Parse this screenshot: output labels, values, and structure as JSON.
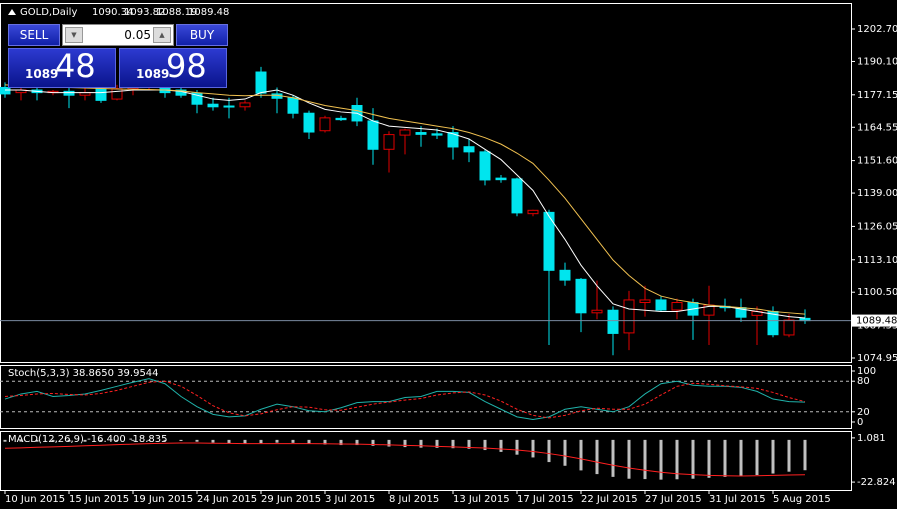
{
  "header": {
    "symbol": "GOLD,Daily"
  },
  "panel": {
    "sell": "SELL",
    "buy": "BUY",
    "lot": "0.05",
    "bid_small": "1089",
    "bid_big": "48",
    "ask_small": "1089",
    "ask_big": "98"
  },
  "chart_data": [
    {
      "type": "candlestick",
      "categories": [
        "10 Jun 2015",
        null,
        null,
        null,
        "15 Jun 2015",
        null,
        null,
        null,
        "19 Jun 2015",
        null,
        null,
        null,
        "24 Jun 2015",
        null,
        null,
        null,
        "29 Jun 2015",
        null,
        null,
        null,
        "3 Jul 2015",
        null,
        null,
        null,
        "8 Jul 2015",
        null,
        null,
        null,
        "13 Jul 2015",
        null,
        null,
        null,
        "17 Jul 2015",
        null,
        null,
        null,
        "22 Jul 2015",
        null,
        null,
        null,
        "27 Jul 2015",
        null,
        null,
        null,
        "31 Jul 2015",
        null,
        null,
        null,
        "5 Aug 2015",
        null,
        null
      ],
      "open": [
        1180,
        1178,
        1179,
        1178,
        1178.5,
        1177,
        1179.5,
        1175.5,
        1179.5,
        1180,
        1180,
        1179,
        1177.8,
        1173.5,
        1172.8,
        1172.5,
        1186,
        1177.5,
        1176,
        1170,
        1163.2,
        1168,
        1173,
        1167,
        1156,
        1161.5,
        1162.5,
        1162,
        1162.5,
        1157,
        1155,
        1144.8,
        1144.5,
        1131,
        1131.5,
        1109,
        1105.5,
        1092.5,
        1093.5,
        1084.7,
        1096.5,
        1097.5,
        1093.6,
        1096.5,
        1091.6,
        1095,
        1094.5,
        1091.5,
        1093,
        1083.9,
        1090.34
      ],
      "high": [
        1182,
        1181,
        1181,
        1179,
        1180,
        1180,
        1181,
        1181,
        1184,
        1181,
        1183,
        1180,
        1179,
        1176,
        1176,
        1175,
        1188,
        1180,
        1177,
        1171,
        1169,
        1169,
        1176,
        1172,
        1163,
        1164,
        1165,
        1164,
        1165,
        1160,
        1156,
        1146,
        1145,
        1132.5,
        1132.5,
        1112,
        1106,
        1105,
        1095,
        1101,
        1103,
        1099,
        1098,
        1098,
        1103,
        1098,
        1098,
        1095,
        1095,
        1092,
        1093.82
      ],
      "low": [
        1176,
        1175,
        1175,
        1177,
        1172,
        1175,
        1174,
        1175,
        1177,
        1179,
        1176,
        1176,
        1170,
        1171,
        1168,
        1171,
        1176,
        1170,
        1168,
        1160,
        1162.5,
        1167,
        1165,
        1150,
        1147,
        1154,
        1157,
        1160,
        1152,
        1151,
        1142,
        1143,
        1130,
        1130,
        1080,
        1103,
        1085,
        1090,
        1076,
        1078,
        1091,
        1093,
        1090,
        1082,
        1080,
        1093,
        1089,
        1080,
        1083,
        1083,
        1088.19
      ],
      "close": [
        1177.5,
        1179,
        1178,
        1178.5,
        1177,
        1178,
        1175,
        1179.5,
        1180,
        1180.5,
        1178,
        1177,
        1173.5,
        1172.5,
        1172.4,
        1174,
        1177.8,
        1175.8,
        1170,
        1162.7,
        1168.2,
        1167.5,
        1167,
        1156,
        1161.7,
        1163.5,
        1161.8,
        1161.5,
        1156.9,
        1155,
        1144.1,
        1144.2,
        1131.3,
        1132.3,
        1109,
        1105.2,
        1092.5,
        1093.5,
        1084.5,
        1097.5,
        1097.5,
        1093.6,
        1096.5,
        1091.6,
        1095.5,
        1094.5,
        1090.8,
        1093,
        1084,
        1089.7,
        1089.48
      ],
      "down_color": "#00e5ee",
      "up_color": "#e00000",
      "lines": [
        {
          "color": "#ffffff",
          "values": [
            1179,
            1179,
            1178.5,
            1178,
            1178,
            1178,
            1178,
            1178.5,
            1179,
            1179,
            1179,
            1178.5,
            1177,
            1175.5,
            1175,
            1175.5,
            1178,
            1179,
            1177,
            1174,
            1171.5,
            1170.5,
            1170,
            1167,
            1165,
            1164.5,
            1164,
            1163.5,
            1162,
            1160,
            1156,
            1152,
            1146,
            1140,
            1130,
            1121,
            1111,
            1103,
            1096,
            1094,
            1093.5,
            1093,
            1093,
            1094,
            1095,
            1095,
            1094,
            1093,
            1092,
            1091,
            1090.5
          ]
        },
        {
          "color": "#f0c050",
          "values": [
            1181,
            1180.8,
            1180.5,
            1180.2,
            1180,
            1179.8,
            1179.6,
            1179.4,
            1179.3,
            1179.2,
            1179,
            1178.7,
            1178,
            1177.5,
            1177,
            1176.8,
            1177,
            1177,
            1176,
            1174.5,
            1173,
            1172,
            1171,
            1169.5,
            1168,
            1167,
            1166,
            1165,
            1164,
            1162.5,
            1160.5,
            1158,
            1154.5,
            1150.5,
            1144,
            1137,
            1129,
            1121,
            1113,
            1107,
            1102,
            1099,
            1097.5,
            1096.5,
            1095.5,
            1095,
            1094.5,
            1094,
            1093,
            1092.5,
            1092
          ]
        }
      ],
      "ylim": [
        1073.4,
        1212.8
      ],
      "yticks": [
        {
          "value": 1202.7,
          "label": "1202.70"
        },
        {
          "value": 1190.1,
          "label": "1190.10"
        },
        {
          "value": 1177.15,
          "label": "1177.15"
        },
        {
          "value": 1164.55,
          "label": "1164.55"
        },
        {
          "value": 1151.6,
          "label": "1151.60"
        },
        {
          "value": 1139,
          "label": "1139.00"
        },
        {
          "value": 1126.05,
          "label": "1126.05"
        },
        {
          "value": 1113.1,
          "label": "1113.10"
        },
        {
          "value": 1100.5,
          "label": "1100.50"
        },
        {
          "value": 1087.55,
          "label": "1087.55"
        },
        {
          "value": 1074.95,
          "label": "1074.95"
        }
      ],
      "current_line_color": "#7a8aa0"
    },
    {
      "type": "line",
      "title": "Stoch(5,3,3) 38.8650 39.9544",
      "series": [
        {
          "color": "#20b2aa",
          "dash": false,
          "values": [
            45,
            55,
            60,
            50,
            52,
            55,
            62,
            70,
            78,
            85,
            75,
            50,
            30,
            15,
            10,
            12,
            25,
            35,
            30,
            22,
            20,
            28,
            38,
            40,
            40,
            48,
            50,
            60,
            60,
            58,
            40,
            25,
            10,
            5,
            10,
            25,
            30,
            25,
            20,
            30,
            55,
            75,
            80,
            72,
            70,
            70,
            68,
            60,
            45,
            40,
            38.865
          ]
        },
        {
          "color": "#ff2020",
          "dash": true,
          "values": [
            50,
            52,
            55,
            56,
            54,
            53,
            56,
            62,
            70,
            78,
            80,
            70,
            52,
            32,
            18,
            12,
            16,
            24,
            30,
            29,
            24,
            23,
            29,
            35,
            39,
            43,
            46,
            53,
            57,
            59,
            53,
            41,
            25,
            13,
            8,
            13,
            22,
            27,
            25,
            25,
            35,
            53,
            70,
            76,
            74,
            71,
            69,
            66,
            58,
            48,
            39.9544
          ]
        }
      ],
      "ylim": [
        -11.8,
        111.8
      ],
      "yticks": [
        100,
        80,
        20,
        0
      ],
      "levels": [
        80,
        20
      ]
    },
    {
      "type": "macd",
      "title": "MACD(12,26,9) -16.400 -18.835",
      "histogram": {
        "color": "#c0c0c0",
        "values": [
          -1,
          -1,
          -1,
          -1,
          -1,
          -1,
          -0.8,
          -0.5,
          -0.3,
          -0.2,
          -0.3,
          -0.6,
          -1,
          -1.5,
          -2,
          -2.2,
          -1.8,
          -1.5,
          -1.6,
          -2,
          -2.5,
          -2.8,
          -2.8,
          -3.2,
          -3.6,
          -3.9,
          -4.2,
          -4.3,
          -4.5,
          -4.8,
          -5.5,
          -6.5,
          -8,
          -9.5,
          -12,
          -14,
          -16.5,
          -18.5,
          -20,
          -21,
          -21.2,
          -21.5,
          -21.3,
          -21,
          -20.5,
          -20,
          -19.5,
          -19,
          -18.2,
          -17.2,
          -16.4
        ]
      },
      "signal": {
        "color": "#ff2020",
        "values": [
          -4.5,
          -4.3,
          -4,
          -3.8,
          -3.5,
          -3.2,
          -2.9,
          -2.6,
          -2.3,
          -2,
          -1.8,
          -1.7,
          -1.7,
          -1.8,
          -1.9,
          -2,
          -2,
          -2,
          -2,
          -2,
          -2.1,
          -2.2,
          -2.3,
          -2.5,
          -2.7,
          -3,
          -3.2,
          -3.5,
          -3.8,
          -4.1,
          -4.4,
          -4.9,
          -5.5,
          -6.3,
          -7.4,
          -8.7,
          -10.3,
          -12,
          -13.7,
          -15.2,
          -16.4,
          -17.5,
          -18.3,
          -18.8,
          -19.2,
          -19.4,
          -19.5,
          -19.4,
          -19.2,
          -19,
          -18.835
        ]
      },
      "ylim": [
        -27.1,
        4.8
      ],
      "yticks": [
        1.081,
        -22.824
      ]
    }
  ]
}
